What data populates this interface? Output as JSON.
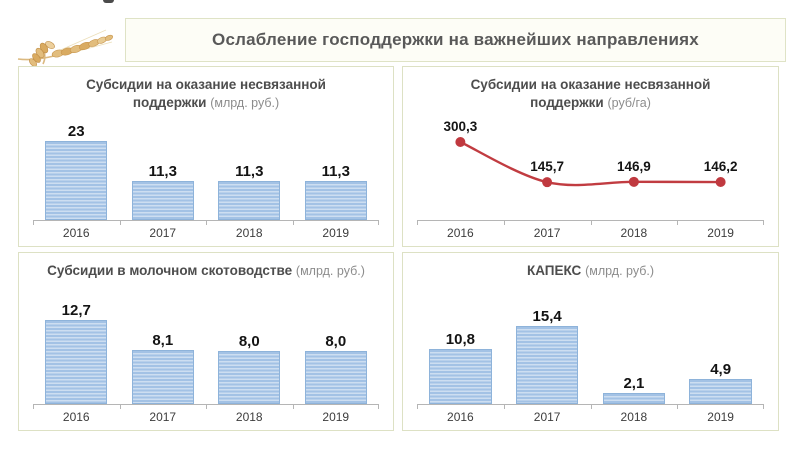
{
  "header": {
    "title": "Ослабление господдержки на важнейших направлениях"
  },
  "logo": {
    "name": "wheat-ears-photo"
  },
  "chart_data": [
    {
      "type": "bar",
      "title": "Субсидии на оказание несвязанной поддержки",
      "unit_label": "(млрд. руб.)",
      "categories": [
        "2016",
        "2017",
        "2018",
        "2019"
      ],
      "values": [
        23,
        11.3,
        11.3,
        11.3
      ],
      "value_labels": [
        "23",
        "11,3",
        "11,3",
        "11,3"
      ],
      "legend": "none",
      "grid": false
    },
    {
      "type": "line",
      "title": "Субсидии на оказание несвязанной поддержки",
      "unit_label": "(руб/га)",
      "categories": [
        "2016",
        "2017",
        "2018",
        "2019"
      ],
      "values": [
        300.3,
        145.7,
        146.9,
        146.2
      ],
      "value_labels": [
        "300,3",
        "145,7",
        "146,9",
        "146,2"
      ],
      "legend": "none",
      "grid": false
    },
    {
      "type": "bar",
      "title": "Субсидии в молочном скотоводстве",
      "unit_label": "(млрд. руб.)",
      "categories": [
        "2016",
        "2017",
        "2018",
        "2019"
      ],
      "values": [
        12.7,
        8.1,
        8.0,
        8.0
      ],
      "value_labels": [
        "12,7",
        "8,1",
        "8,0",
        "8,0"
      ],
      "legend": "none",
      "grid": false
    },
    {
      "type": "bar",
      "title": "КАПЕКС",
      "unit_label": "(млрд. руб.)",
      "categories": [
        "2016",
        "2017",
        "2018",
        "2019"
      ],
      "values": [
        10.8,
        15.4,
        2.1,
        4.9
      ],
      "value_labels": [
        "10,8",
        "15,4",
        "2,1",
        "4,9"
      ],
      "legend": "none",
      "grid": false
    }
  ],
  "colors": {
    "bar_fill": "#a3c2e5",
    "bar_stripe": "#cddef1",
    "bar_border": "#8eb3da",
    "line": "#c13c41",
    "marker": "#c0393f",
    "axis": "#b5b5b5",
    "panel_border": "#dde1c4",
    "title_text": "#4d4d4d",
    "unit_text": "#8c8c8c",
    "header_text": "#595959",
    "value_label_text": "#141414"
  }
}
